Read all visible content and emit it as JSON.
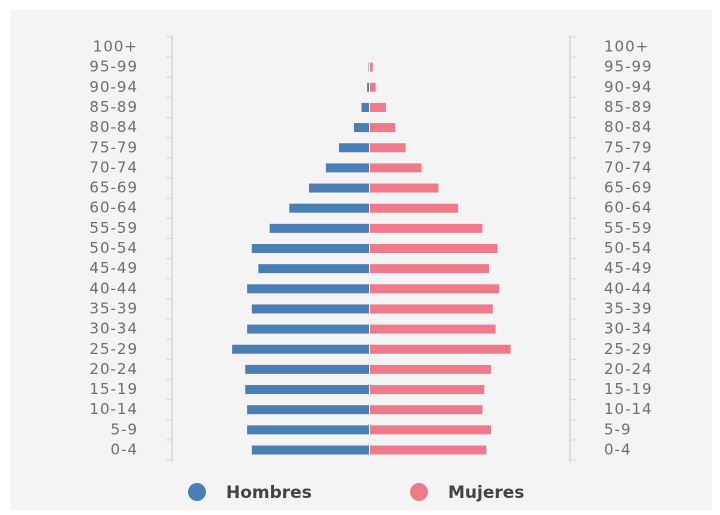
{
  "chart_data": {
    "type": "pyramid",
    "categories": [
      "100+",
      "95-99",
      "90-94",
      "85-89",
      "80-84",
      "75-79",
      "70-74",
      "65-69",
      "60-64",
      "55-59",
      "50-54",
      "45-49",
      "40-44",
      "35-39",
      "30-34",
      "25-29",
      "20-24",
      "15-19",
      "10-14",
      "5-9",
      "0-4"
    ],
    "series": [
      {
        "name": "Hombres",
        "color": "#4a7fb5",
        "values": [
          0,
          0.5,
          2,
          8,
          16,
          32,
          46,
          64,
          85,
          106,
          125,
          118,
          130,
          125,
          130,
          146,
          132,
          132,
          130,
          130,
          125
        ]
      },
      {
        "name": "Mujeres",
        "color": "#ef7b8a",
        "values": [
          0,
          3,
          6,
          17,
          27,
          38,
          55,
          73,
          94,
          120,
          136,
          127,
          138,
          131,
          134,
          150,
          129,
          122,
          120,
          129,
          124
        ]
      }
    ],
    "xlim": [
      0,
      160
    ]
  }
}
